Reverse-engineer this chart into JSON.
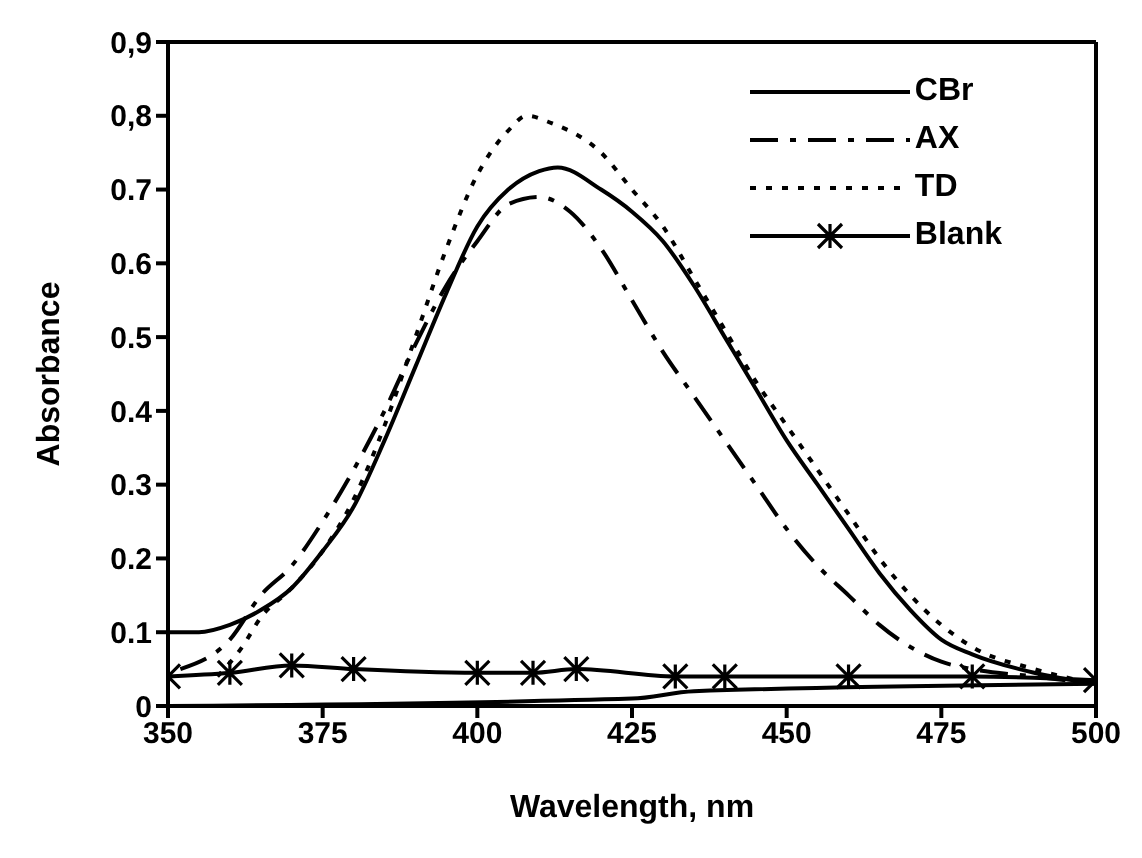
{
  "chart_data": {
    "type": "line",
    "xlabel": "Wavelength, nm",
    "ylabel": "Absorbance",
    "xlim": [
      350,
      500
    ],
    "xticks": [
      350,
      375,
      400,
      425,
      450,
      475,
      500
    ],
    "ylim": [
      0,
      0.9
    ],
    "yticks": [
      0,
      0.1,
      0.2,
      0.3,
      0.4,
      0.5,
      0.6,
      0.7,
      {
        "value": 0.8,
        "label": "0,8"
      },
      {
        "value": 0.9,
        "label": "0,9"
      }
    ],
    "legend": "top right",
    "series": [
      {
        "name": "CBr",
        "color": "#000000",
        "line_style": "solid",
        "marker": "none",
        "x": [
          350,
          355,
          360,
          365,
          370,
          375,
          380,
          385,
          390,
          395,
          400,
          405,
          410,
          413,
          420,
          425,
          430,
          435,
          440,
          445,
          450,
          455,
          460,
          465,
          470,
          475,
          480,
          490,
          500
        ],
        "values": [
          0.1,
          0.1,
          0.11,
          0.13,
          0.16,
          0.21,
          0.27,
          0.36,
          0.46,
          0.56,
          0.65,
          0.7,
          0.725,
          0.73,
          0.7,
          0.67,
          0.63,
          0.57,
          0.5,
          0.43,
          0.36,
          0.3,
          0.24,
          0.18,
          0.13,
          0.09,
          0.07,
          0.045,
          0.03
        ]
      },
      {
        "name": "AX",
        "color": "#000000",
        "line_style": "dashed",
        "marker": "none",
        "x": [
          352,
          360,
          365,
          370,
          375,
          380,
          385,
          390,
          395,
          400,
          405,
          410,
          415,
          420,
          425,
          430,
          435,
          440,
          445,
          450,
          455,
          460,
          465,
          470,
          475,
          480,
          490,
          500
        ],
        "values": [
          0.05,
          0.09,
          0.15,
          0.19,
          0.25,
          0.32,
          0.4,
          0.49,
          0.57,
          0.63,
          0.68,
          0.69,
          0.67,
          0.62,
          0.55,
          0.48,
          0.42,
          0.36,
          0.3,
          0.24,
          0.19,
          0.15,
          0.11,
          0.08,
          0.06,
          0.05,
          0.04,
          0.03
        ]
      },
      {
        "name": "TD",
        "color": "#000000",
        "line_style": "dotted",
        "marker": "none",
        "x": [
          358,
          362,
          365,
          370,
          375,
          380,
          385,
          390,
          395,
          400,
          405,
          408,
          412,
          420,
          425,
          430,
          435,
          440,
          445,
          450,
          455,
          460,
          465,
          470,
          475,
          480,
          490,
          500
        ],
        "values": [
          0.04,
          0.08,
          0.12,
          0.16,
          0.21,
          0.28,
          0.38,
          0.5,
          0.62,
          0.72,
          0.78,
          0.8,
          0.79,
          0.75,
          0.7,
          0.65,
          0.58,
          0.51,
          0.44,
          0.38,
          0.32,
          0.26,
          0.2,
          0.15,
          0.11,
          0.08,
          0.05,
          0.03
        ]
      },
      {
        "name": "Blank",
        "color": "#000000",
        "line_style": "solid",
        "marker": "cross",
        "x": [
          350,
          360,
          370,
          380,
          400,
          409,
          416,
          432,
          440,
          460,
          480,
          500
        ],
        "values": [
          0.04,
          0.045,
          0.055,
          0.05,
          0.045,
          0.045,
          0.05,
          0.04,
          0.04,
          0.04,
          0.04,
          0.035
        ]
      },
      {
        "color": "#000000",
        "line_style": "solid",
        "marker": "none",
        "x": [
          350,
          425,
          435,
          500
        ],
        "values": [
          0,
          0.01,
          0.02,
          0.03
        ]
      }
    ]
  }
}
